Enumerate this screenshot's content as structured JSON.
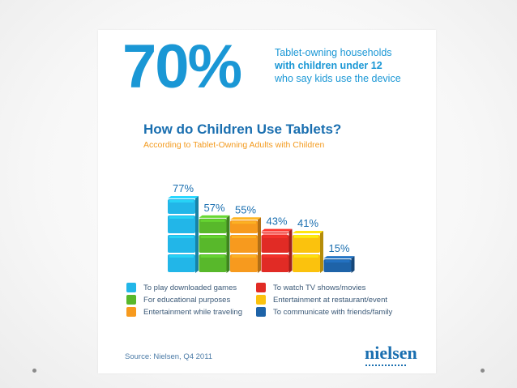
{
  "headline": {
    "value": "70%",
    "line1": "Tablet-owning households",
    "line2": "with children under 12",
    "line3": "who say kids use the device"
  },
  "chart_data": {
    "type": "bar",
    "title": "How do Children Use Tablets?",
    "subtitle": "According to Tablet-Owning Adults with Children",
    "categories": [
      "To play downloaded games",
      "For educational purposes",
      "Entertainment while traveling",
      "To watch TV shows/movies",
      "Entertainment at restaurant/event",
      "To communicate with friends/family"
    ],
    "values": [
      77,
      57,
      55,
      43,
      41,
      15
    ],
    "value_labels": [
      "77%",
      "57%",
      "55%",
      "43%",
      "41%",
      "15%"
    ],
    "colors": [
      "#22b6e8",
      "#58b82b",
      "#f79a1e",
      "#e12b25",
      "#fbc20d",
      "#1e63a8"
    ],
    "label_colors": [
      "#1a6fb0",
      "#1a6fb0",
      "#1a6fb0",
      "#1a6fb0",
      "#1a6fb0",
      "#1a6fb0"
    ],
    "xlabel": "",
    "ylabel": "",
    "ylim": [
      0,
      100
    ],
    "grid": false,
    "legend": "bottom"
  },
  "source": "Source: Nielsen, Q4 2011",
  "logo": "nielsen"
}
